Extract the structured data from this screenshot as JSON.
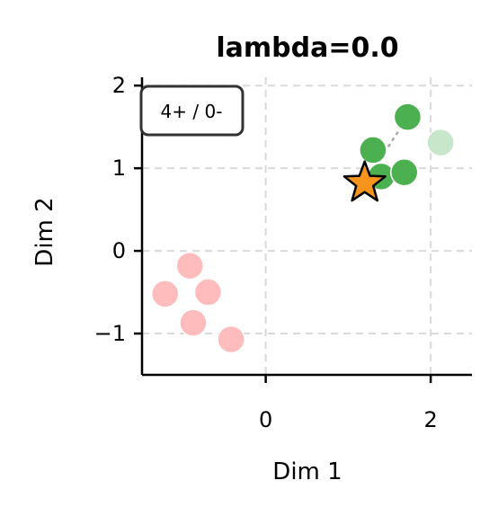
{
  "chart_data": {
    "type": "scatter",
    "title": "lambda=0.0",
    "xlabel": "Dim 1",
    "ylabel": "Dim 2",
    "xlim": [
      -1.5,
      2.5
    ],
    "ylim": [
      -1.5,
      2.1
    ],
    "xticks": [
      0,
      2
    ],
    "xtick_labels": [
      "0",
      "2"
    ],
    "yticks": [
      -1,
      0,
      1,
      2
    ],
    "ytick_labels": [
      "−1",
      "0",
      "1",
      "2"
    ],
    "grid": true,
    "annotation": "4+ / 0-",
    "annotation_placement": "top-left",
    "colors": {
      "positive": "#4caf50",
      "positive_faded": "#c8e6c9",
      "negative": "#ffbcbc",
      "star": "#f7941d",
      "grid": "#d9d9d9",
      "link": "#aaaaaa"
    },
    "groups": [
      {
        "kind": "positive",
        "points": [
          {
            "x": 1.72,
            "y": 1.62
          },
          {
            "x": 1.3,
            "y": 1.22
          },
          {
            "x": 1.4,
            "y": 0.9
          },
          {
            "x": 1.68,
            "y": 0.95
          }
        ]
      },
      {
        "kind": "positive_faded",
        "points": [
          {
            "x": 2.12,
            "y": 1.31
          }
        ]
      },
      {
        "kind": "negative",
        "points": [
          {
            "x": -0.92,
            "y": -0.18
          },
          {
            "x": -1.22,
            "y": -0.52
          },
          {
            "x": -0.7,
            "y": -0.5
          },
          {
            "x": -0.88,
            "y": -0.87
          },
          {
            "x": -0.42,
            "y": -1.07
          }
        ]
      }
    ],
    "links": [
      {
        "from": [
          1.2,
          0.82
        ],
        "to": [
          1.72,
          1.62
        ]
      }
    ],
    "star": {
      "x": 1.2,
      "y": 0.82
    }
  }
}
